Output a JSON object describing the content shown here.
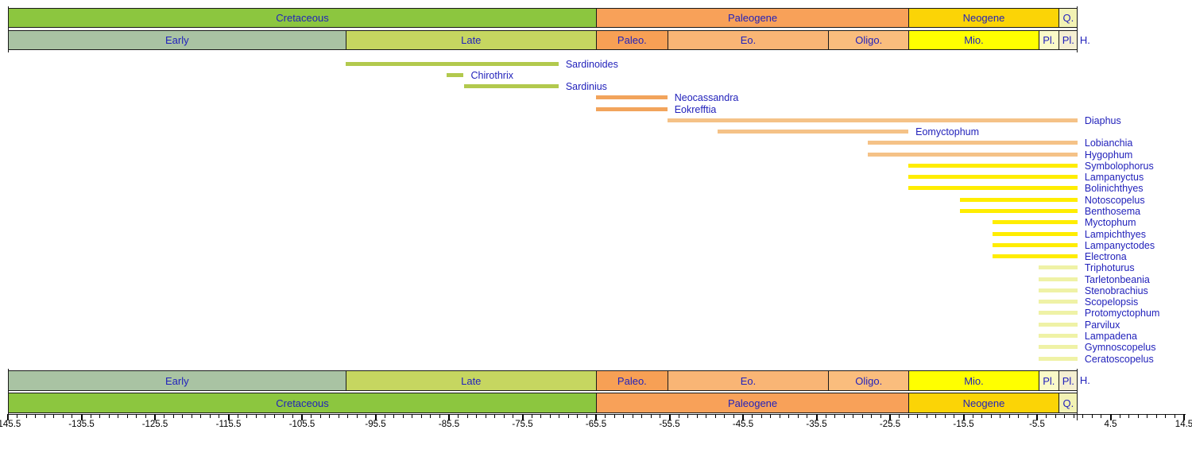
{
  "page": {
    "background": "#FFFFFF"
  },
  "colors": {
    "label_text": "#2222BB",
    "tick_text": "#000000",
    "border": "#1A1A1A",
    "bar_olive": "#B2C94E",
    "bar_orange": "#F2A45C",
    "bar_light_orange": "#F5C287",
    "bar_yellow": "#FFED00",
    "bar_pale": "#EFF2A6"
  },
  "chart_data": {
    "type": "bar",
    "subtype": "stratigraphic-range-chart",
    "title": "",
    "xlabel": "",
    "ylabel": "",
    "axis": {
      "min": -145.5,
      "max": 14.5,
      "major_tick_step": 10,
      "minor_tick_step": 1.25,
      "major_tick_labels": [
        "-145.5",
        "-135.5",
        "-125.5",
        "-115.5",
        "-105.5",
        "-95.5",
        "-85.5",
        "-75.5",
        "-65.5",
        "-55.5",
        "-45.5",
        "-35.5",
        "-25.5",
        "-15.5",
        "-5.5",
        "4.5",
        "14.5"
      ]
    },
    "periods": [
      {
        "label": "Cretaceous",
        "start": -145.5,
        "end": -65.5,
        "color": "#8CC63F"
      },
      {
        "label": "Paleogene",
        "start": -65.5,
        "end": -23.0,
        "color": "#F8A159"
      },
      {
        "label": "Neogene",
        "start": -23.0,
        "end": -2.6,
        "color": "#FBD406"
      },
      {
        "label": "Q.",
        "start": -2.6,
        "end": 0.0,
        "color": "#F2F2B4"
      }
    ],
    "epochs": [
      {
        "label": "Early",
        "start": -145.5,
        "end": -99.6,
        "color": "#A9C3A3"
      },
      {
        "label": "Late",
        "start": -99.6,
        "end": -65.5,
        "color": "#C6D660"
      },
      {
        "label": "Paleo.",
        "start": -65.5,
        "end": -55.8,
        "color": "#F7A055"
      },
      {
        "label": "Eo.",
        "start": -55.8,
        "end": -33.9,
        "color": "#F9B575"
      },
      {
        "label": "Oligo.",
        "start": -33.9,
        "end": -23.0,
        "color": "#FABD7D"
      },
      {
        "label": "Mio.",
        "start": -23.0,
        "end": -5.3,
        "color": "#FFFF00"
      },
      {
        "label": "Pl.",
        "start": -5.3,
        "end": -2.6,
        "color": "#FAFAC8"
      },
      {
        "label": "Pl.",
        "start": -2.6,
        "end": -0.01,
        "color": "#F5EFD2"
      },
      {
        "label": "H.",
        "start": -0.01,
        "end": 0.0,
        "color": "#F5EFD2"
      }
    ],
    "taxa": [
      {
        "name": "Sardinoides",
        "start": -99.6,
        "end": -70.6,
        "color": "bar_olive"
      },
      {
        "name": "Chirothrix",
        "start": -85.8,
        "end": -83.5,
        "color": "bar_olive"
      },
      {
        "name": "Sardinius",
        "start": -83.5,
        "end": -70.6,
        "color": "bar_olive"
      },
      {
        "name": "Neocassandra",
        "start": -65.5,
        "end": -55.8,
        "color": "bar_orange"
      },
      {
        "name": "Eokrefftia",
        "start": -65.5,
        "end": -55.8,
        "color": "bar_orange"
      },
      {
        "name": "Diaphus",
        "start": -55.8,
        "end": 0.0,
        "color": "bar_light_orange"
      },
      {
        "name": "Eomyctophum",
        "start": -49.0,
        "end": -23.0,
        "color": "bar_light_orange"
      },
      {
        "name": "Lobianchia",
        "start": -28.5,
        "end": 0.0,
        "color": "bar_light_orange"
      },
      {
        "name": "Hygophum",
        "start": -28.5,
        "end": 0.0,
        "color": "bar_light_orange"
      },
      {
        "name": "Symbolophorus",
        "start": -23.0,
        "end": 0.0,
        "color": "bar_yellow"
      },
      {
        "name": "Lampanyctus",
        "start": -23.0,
        "end": 0.0,
        "color": "bar_yellow"
      },
      {
        "name": "Bolinichthyes",
        "start": -23.0,
        "end": 0.0,
        "color": "bar_yellow"
      },
      {
        "name": "Notoscopelus",
        "start": -16.0,
        "end": 0.0,
        "color": "bar_yellow"
      },
      {
        "name": "Benthosema",
        "start": -16.0,
        "end": 0.0,
        "color": "bar_yellow"
      },
      {
        "name": "Myctophum",
        "start": -11.6,
        "end": 0.0,
        "color": "bar_yellow"
      },
      {
        "name": "Lampichthyes",
        "start": -11.6,
        "end": 0.0,
        "color": "bar_yellow"
      },
      {
        "name": "Lampanyctodes",
        "start": -11.6,
        "end": 0.0,
        "color": "bar_yellow"
      },
      {
        "name": "Electrona",
        "start": -11.6,
        "end": 0.0,
        "color": "bar_yellow"
      },
      {
        "name": "Triphoturus",
        "start": -5.3,
        "end": 0.0,
        "color": "bar_pale"
      },
      {
        "name": "Tarletonbeania",
        "start": -5.3,
        "end": 0.0,
        "color": "bar_pale"
      },
      {
        "name": "Stenobrachius",
        "start": -5.3,
        "end": 0.0,
        "color": "bar_pale"
      },
      {
        "name": "Scopelopsis",
        "start": -5.3,
        "end": 0.0,
        "color": "bar_pale"
      },
      {
        "name": "Protomyctophum",
        "start": -5.3,
        "end": 0.0,
        "color": "bar_pale"
      },
      {
        "name": "Parvilux",
        "start": -5.3,
        "end": 0.0,
        "color": "bar_pale"
      },
      {
        "name": "Lampadena",
        "start": -5.3,
        "end": 0.0,
        "color": "bar_pale"
      },
      {
        "name": "Gymnoscopelus",
        "start": -5.3,
        "end": 0.0,
        "color": "bar_pale"
      },
      {
        "name": "Ceratoscopelus",
        "start": -5.3,
        "end": 0.0,
        "color": "bar_pale"
      }
    ]
  }
}
